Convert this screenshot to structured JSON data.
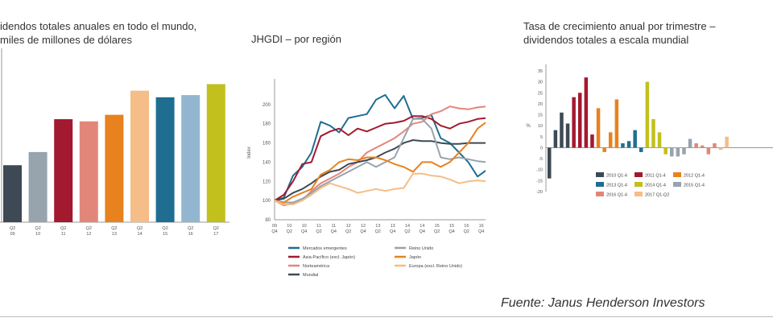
{
  "source_label": "Fuente: Janus Henderson Investors",
  "chart_data": [
    {
      "type": "bar",
      "title": "idendos totales anuales en todo el mundo,\nmiles de millones de dólares",
      "categories": [
        [
          "Q2",
          "09"
        ],
        [
          "Q2",
          "10"
        ],
        [
          "Q2",
          "11"
        ],
        [
          "Q2",
          "12"
        ],
        [
          "Q2",
          "13"
        ],
        [
          "Q2",
          "14"
        ],
        [
          "Q2",
          "15"
        ],
        [
          "Q2",
          "16"
        ],
        [
          "Q2",
          "17"
        ]
      ],
      "values": [
        240,
        270,
        345,
        340,
        355,
        410,
        395,
        400,
        425
      ],
      "colors": [
        "#3d4a55",
        "#97a3ad",
        "#a3192f",
        "#e3867a",
        "#e8821e",
        "#f5bd87",
        "#1f6e92",
        "#93b6d0",
        "#c1c01d"
      ],
      "ylim": [
        110,
        470
      ]
    },
    {
      "type": "line",
      "title": "JHGDI – por región",
      "ylabel": "Index",
      "ylim": [
        80,
        220
      ],
      "yticks": [
        80,
        100,
        120,
        140,
        160,
        180,
        200
      ],
      "x_labels": [
        [
          "09",
          "Q4"
        ],
        [
          "10",
          "Q2"
        ],
        [
          "10",
          "Q4"
        ],
        [
          "11",
          "Q2"
        ],
        [
          "11",
          "Q4"
        ],
        [
          "12",
          "Q2"
        ],
        [
          "12",
          "Q4"
        ],
        [
          "13",
          "Q2"
        ],
        [
          "13",
          "Q4"
        ],
        [
          "14",
          "Q2"
        ],
        [
          "14",
          "Q4"
        ],
        [
          "15",
          "Q2"
        ],
        [
          "15",
          "Q4"
        ],
        [
          "16",
          "Q2"
        ],
        [
          "16",
          "Q4"
        ],
        [
          "17",
          "Q2"
        ]
      ],
      "series": [
        {
          "name": "Mercados emergentes",
          "color": "#1f6e92",
          "values": [
            100,
            103,
            126,
            135,
            150,
            182,
            178,
            171,
            186,
            188,
            190,
            205,
            210,
            196,
            209,
            185,
            186,
            189,
            165,
            160,
            150,
            140,
            125,
            132,
            140
          ]
        },
        {
          "name": "Asia-Pacífico (excl. Japón)",
          "color": "#a3192f",
          "values": [
            100,
            106,
            120,
            138,
            140,
            167,
            172,
            175,
            168,
            175,
            172,
            176,
            180,
            181,
            183,
            188,
            188,
            185,
            178,
            175,
            180,
            182,
            185,
            186,
            188
          ]
        },
        {
          "name": "Norteamérica",
          "color": "#e3867a",
          "values": [
            100,
            95,
            97,
            100,
            110,
            118,
            123,
            128,
            135,
            140,
            150,
            155,
            160,
            165,
            172,
            180,
            182,
            190,
            193,
            198,
            196,
            195,
            197,
            198,
            202
          ]
        },
        {
          "name": "Mundial",
          "color": "#3d4a55",
          "values": [
            100,
            102,
            108,
            112,
            118,
            125,
            130,
            132,
            138,
            140,
            142,
            145,
            150,
            154,
            160,
            163,
            162,
            162,
            160,
            159,
            159,
            160,
            160,
            160,
            163
          ]
        },
        {
          "name": "Reino Unido",
          "color": "#97a3ad",
          "values": [
            100,
            98,
            98,
            102,
            108,
            115,
            120,
            125,
            130,
            135,
            140,
            135,
            140,
            145,
            165,
            185,
            185,
            175,
            145,
            143,
            145,
            143,
            141,
            140,
            139
          ]
        },
        {
          "name": "Japón",
          "color": "#e8821e",
          "values": [
            100,
            98,
            104,
            108,
            112,
            127,
            132,
            140,
            143,
            142,
            145,
            145,
            142,
            138,
            135,
            130,
            140,
            140,
            135,
            140,
            150,
            160,
            175,
            182,
            188
          ]
        },
        {
          "name": "Europa (excl. Reino Unido)",
          "color": "#f5bd87",
          "values": [
            100,
            96,
            96,
            100,
            106,
            113,
            118,
            115,
            112,
            108,
            110,
            112,
            110,
            112,
            113,
            128,
            128,
            126,
            125,
            122,
            118,
            120,
            121,
            120,
            121
          ]
        }
      ]
    },
    {
      "type": "bar",
      "title": "Tasa de crecimiento anual por trimestre –\ndividendos totales a escala mundial",
      "ylabel": "%",
      "ylim": [
        -20,
        35
      ],
      "yticks": [
        -20,
        -15,
        -10,
        -5,
        0,
        5,
        10,
        15,
        20,
        25,
        30,
        35
      ],
      "series": [
        {
          "name": "2010 Q1-4",
          "color": "#3d4a55",
          "values": [
            -14,
            8,
            16,
            11
          ]
        },
        {
          "name": "2011 Q1-4",
          "color": "#a3192f",
          "values": [
            23,
            25,
            32,
            6
          ]
        },
        {
          "name": "2012 Q1-4",
          "color": "#e8821e",
          "values": [
            18,
            -2,
            7,
            22
          ]
        },
        {
          "name": "2013 Q1-4",
          "color": "#1f6e92",
          "values": [
            2,
            3,
            8,
            -2
          ]
        },
        {
          "name": "2014 Q1-4",
          "color": "#c1c01d",
          "values": [
            30,
            13,
            7,
            -3
          ]
        },
        {
          "name": "2015 Q1-4",
          "color": "#97a3ad",
          "values": [
            -4,
            -4,
            -3,
            4
          ]
        },
        {
          "name": "2016 Q1-4",
          "color": "#e3867a",
          "values": [
            2,
            1,
            -3,
            2
          ]
        },
        {
          "name": "2017 Q1-Q2",
          "color": "#f5bd87",
          "values": [
            -1,
            5
          ]
        }
      ]
    }
  ]
}
